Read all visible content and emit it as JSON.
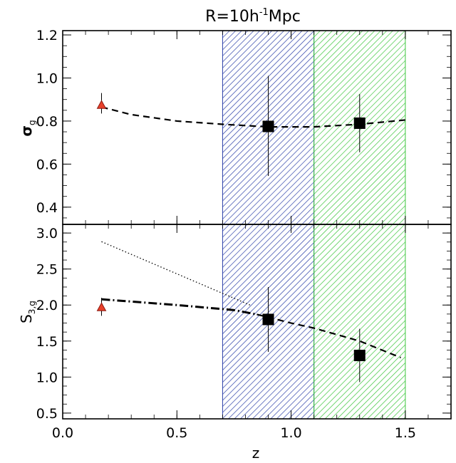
{
  "chart_data": {
    "type": "scatter",
    "title": "R=10h",
    "title_sup": "-1",
    "title_tail": "Mpc",
    "xlabel": "z",
    "xlim": [
      0.0,
      1.7
    ],
    "x_ticks": [
      "0.0",
      "0.5",
      "1.0",
      "1.5"
    ],
    "x_tick_values": [
      0.0,
      0.5,
      1.0,
      1.5
    ],
    "shaded_regions": [
      {
        "z_min": 0.7,
        "z_max": 1.1,
        "color": "#2b3fa8",
        "style": "hatched"
      },
      {
        "z_min": 1.1,
        "z_max": 1.5,
        "color": "#3cc63c",
        "style": "hatched"
      }
    ],
    "panels": [
      {
        "ylabel": "σ",
        "ylabel_sub": "g",
        "ylim": [
          0.32,
          1.22
        ],
        "y_ticks": [
          "0.4",
          "0.6",
          "0.8",
          "1.0",
          "1.2"
        ],
        "y_tick_values": [
          0.4,
          0.6,
          0.8,
          1.0,
          1.2
        ],
        "squares": [
          {
            "x": 0.9,
            "y": 0.775,
            "y_err_low": 0.545,
            "y_err_high": 1.01
          },
          {
            "x": 1.3,
            "y": 0.79,
            "y_err_low": 0.655,
            "y_err_high": 0.925
          }
        ],
        "triangles": [
          {
            "x": 0.17,
            "y": 0.875,
            "y_err_low": 0.835,
            "y_err_high": 0.93
          }
        ],
        "curves": [
          {
            "style": "dashed",
            "x": [
              0.17,
              0.3,
              0.5,
              0.7,
              0.9,
              1.1,
              1.3,
              1.5
            ],
            "y": [
              0.865,
              0.83,
              0.8,
              0.785,
              0.773,
              0.773,
              0.785,
              0.805
            ]
          }
        ]
      },
      {
        "ylabel": "S",
        "ylabel_sub": "3,g",
        "ylim": [
          0.42,
          3.12
        ],
        "y_ticks": [
          "0.5",
          "1.0",
          "1.5",
          "2.0",
          "2.5",
          "3.0"
        ],
        "y_tick_values": [
          0.5,
          1.0,
          1.5,
          2.0,
          2.5,
          3.0
        ],
        "squares": [
          {
            "x": 0.9,
            "y": 1.8,
            "y_err_low": 1.35,
            "y_err_high": 2.25
          },
          {
            "x": 1.3,
            "y": 1.3,
            "y_err_low": 0.93,
            "y_err_high": 1.67
          }
        ],
        "triangles": [
          {
            "x": 0.17,
            "y": 1.97,
            "y_err_low": 1.85,
            "y_err_high": 2.1
          }
        ],
        "curves": [
          {
            "style": "dotted",
            "x": [
              0.17,
              0.82
            ],
            "y": [
              2.88,
              2.0
            ]
          },
          {
            "style": "dashdot",
            "x": [
              0.17,
              0.5,
              0.75,
              0.85
            ],
            "y": [
              2.08,
              2.0,
              1.93,
              1.87
            ]
          },
          {
            "style": "dashed",
            "x": [
              0.85,
              1.0,
              1.1,
              1.3,
              1.48
            ],
            "y": [
              1.87,
              1.75,
              1.68,
              1.5,
              1.27
            ]
          }
        ]
      }
    ]
  }
}
